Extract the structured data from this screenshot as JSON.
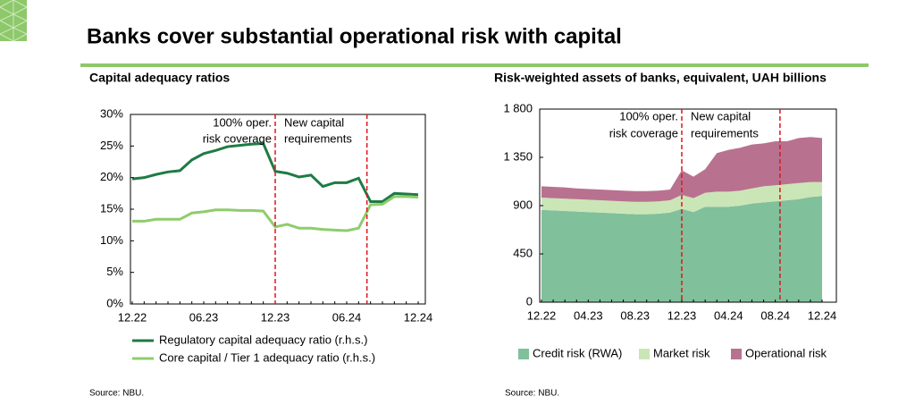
{
  "title": "Banks cover substantial operational risk with capital",
  "chart_data": [
    {
      "type": "line",
      "title": "Capital adequacy ratios",
      "categories": [
        "12.22",
        null,
        null,
        null,
        null,
        null,
        "06.23",
        null,
        null,
        null,
        null,
        null,
        "12.23",
        null,
        null,
        null,
        null,
        null,
        "06.24",
        null,
        null,
        null,
        null,
        null,
        "12.24"
      ],
      "series": [
        {
          "name": "Regulatory capital adequacy ratio (r.h.s.)",
          "color": "#1e7b45",
          "values": [
            19.8,
            20.0,
            20.5,
            20.9,
            21.1,
            22.8,
            23.8,
            24.3,
            24.9,
            25.1,
            25.3,
            25.4,
            21.0,
            20.7,
            20.1,
            20.4,
            18.6,
            19.2,
            19.2,
            19.9,
            16.2,
            16.2,
            17.5,
            17.4,
            17.3
          ]
        },
        {
          "name": "Core capital / Tier 1 adequacy ratio (r.h.s.)",
          "color": "#8fcc6c",
          "values": [
            13.1,
            13.1,
            13.4,
            13.4,
            13.4,
            14.4,
            14.6,
            14.9,
            14.9,
            14.8,
            14.8,
            14.7,
            12.2,
            12.6,
            12.0,
            12.0,
            11.8,
            11.7,
            11.6,
            12.0,
            15.7,
            15.8,
            17.0,
            17.0,
            16.9
          ]
        }
      ],
      "ylim": [
        0,
        30
      ],
      "yticks": [
        {
          "value": 0,
          "label": "0%"
        },
        {
          "value": 5,
          "label": "5%"
        },
        {
          "value": 10,
          "label": "10%"
        },
        {
          "value": 15,
          "label": "15%"
        },
        {
          "value": 20,
          "label": "20%"
        },
        {
          "value": 25,
          "label": "25%"
        },
        {
          "value": 30,
          "label": "30%"
        }
      ],
      "vlines": [
        12,
        19.7
      ],
      "vline_color": "#e0141e",
      "annotations": [
        {
          "text": [
            "100% oper.",
            "risk coverage"
          ]
        },
        {
          "text": [
            "New capital",
            "requirements"
          ]
        }
      ],
      "source": "Source: NBU."
    },
    {
      "type": "area",
      "stacked": true,
      "title": "Risk-weighted assets of banks, equivalent, UAH billions",
      "categories": [
        "12.22",
        null,
        null,
        null,
        "04.23",
        null,
        null,
        null,
        "08.23",
        null,
        null,
        null,
        "12.23",
        null,
        null,
        null,
        "04.24",
        null,
        null,
        null,
        "08.24",
        null,
        null,
        null,
        "12.24"
      ],
      "series": [
        {
          "name": "Credit risk (RWA)",
          "color": "#80c09a",
          "values": [
            860,
            855,
            850,
            845,
            840,
            835,
            830,
            825,
            820,
            820,
            825,
            835,
            870,
            840,
            890,
            890,
            890,
            900,
            920,
            930,
            940,
            950,
            960,
            980,
            990
          ]
        },
        {
          "name": "Market risk",
          "color": "#cbe6b6",
          "values": [
            115,
            115,
            115,
            115,
            115,
            115,
            115,
            115,
            115,
            115,
            115,
            115,
            130,
            130,
            130,
            140,
            140,
            140,
            140,
            150,
            150,
            150,
            150,
            140,
            130
          ]
        },
        {
          "name": "Operational risk",
          "color": "#b87290",
          "values": [
            105,
            105,
            105,
            100,
            100,
            100,
            100,
            100,
            100,
            100,
            100,
            100,
            230,
            200,
            220,
            360,
            390,
            400,
            410,
            400,
            410,
            400,
            420,
            420,
            410
          ]
        }
      ],
      "ylim": [
        0,
        1800
      ],
      "yticks": [
        0,
        450,
        900,
        {
          "value": 1350,
          "label": "1 350"
        },
        {
          "value": 1800,
          "label": "1 800"
        }
      ],
      "vlines": [
        12,
        20.4
      ],
      "vline_color": "#e0141e",
      "annotations": [
        {
          "text": [
            "100% oper.",
            "risk coverage"
          ]
        },
        {
          "text": [
            "New capital",
            "requirements"
          ]
        }
      ],
      "source": "Source: NBU."
    }
  ]
}
